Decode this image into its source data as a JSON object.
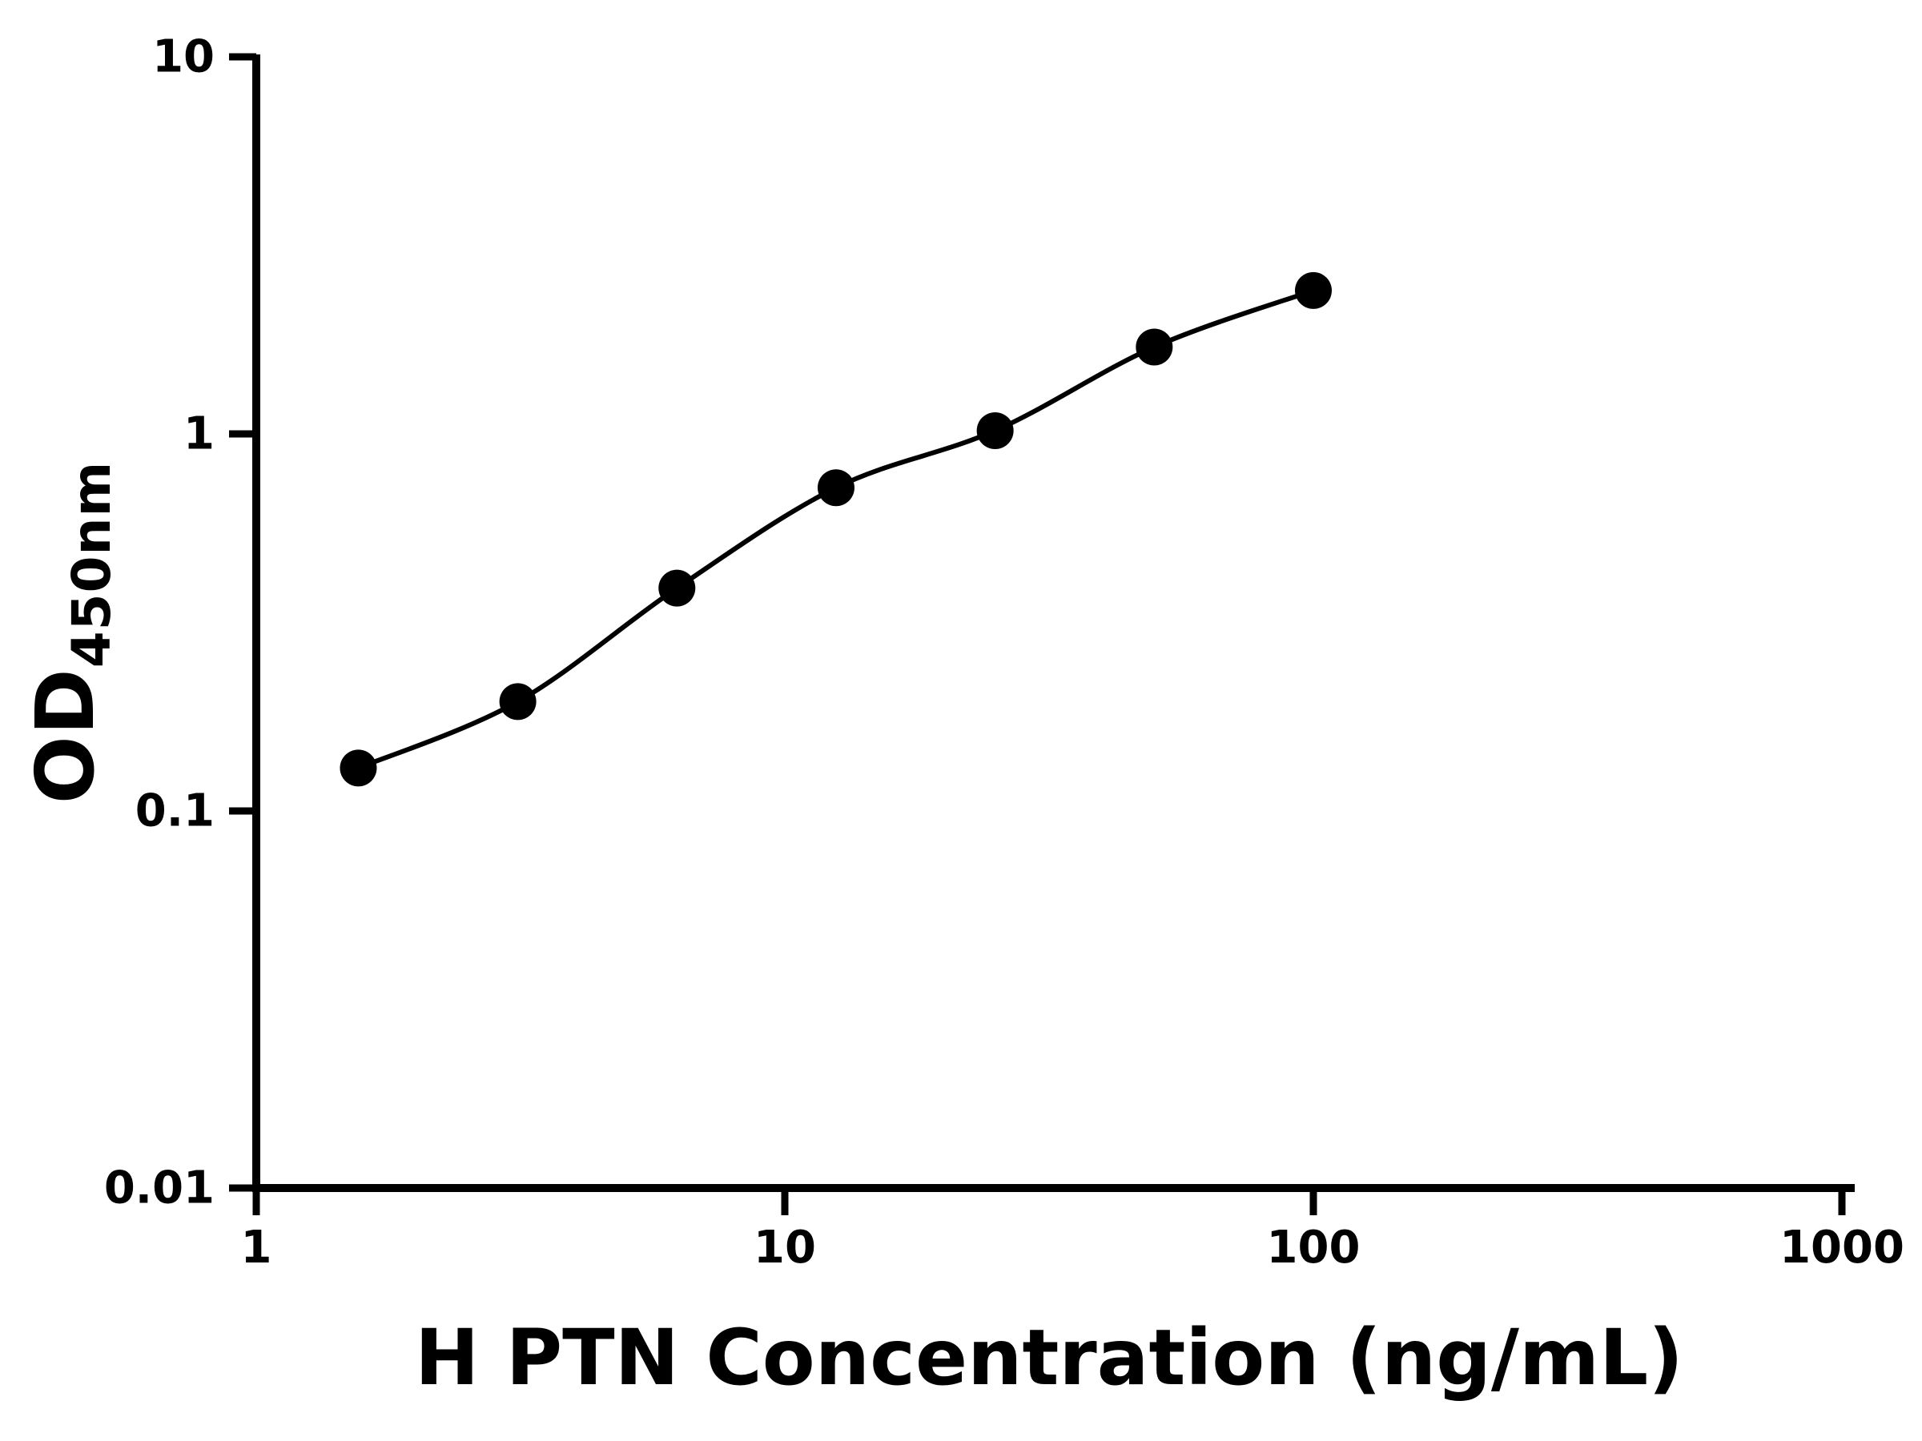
{
  "figure": {
    "background": "#ffffff"
  },
  "chart_data": {
    "type": "scatter",
    "subtype": "log-log ELISA standard curve with fitted smooth line and filled circle markers",
    "title": "",
    "xlabel": "H PTN Concentration (ng/mL)",
    "ylabel_main": "OD",
    "ylabel_sub": "450nm",
    "x_scale": "log10",
    "y_scale": "log10",
    "xlim": [
      1,
      1000
    ],
    "ylim": [
      0.01,
      10
    ],
    "x_tick_values": [
      1,
      10,
      100,
      1000
    ],
    "x_tick_labels": [
      "1",
      "10",
      "100",
      "1000"
    ],
    "y_tick_values": [
      0.01,
      0.1,
      1,
      10
    ],
    "y_tick_labels": [
      "0.01",
      "0.1",
      "1",
      "10"
    ],
    "x": [
      1.56,
      3.125,
      6.25,
      12.5,
      25,
      50,
      100
    ],
    "y": [
      0.13,
      0.195,
      0.39,
      0.72,
      1.02,
      1.7,
      2.4
    ],
    "grid": false,
    "legend": "none",
    "axis_color": "#000000",
    "line_color": "#000000",
    "marker_color": "#000000",
    "marker": "circle"
  }
}
